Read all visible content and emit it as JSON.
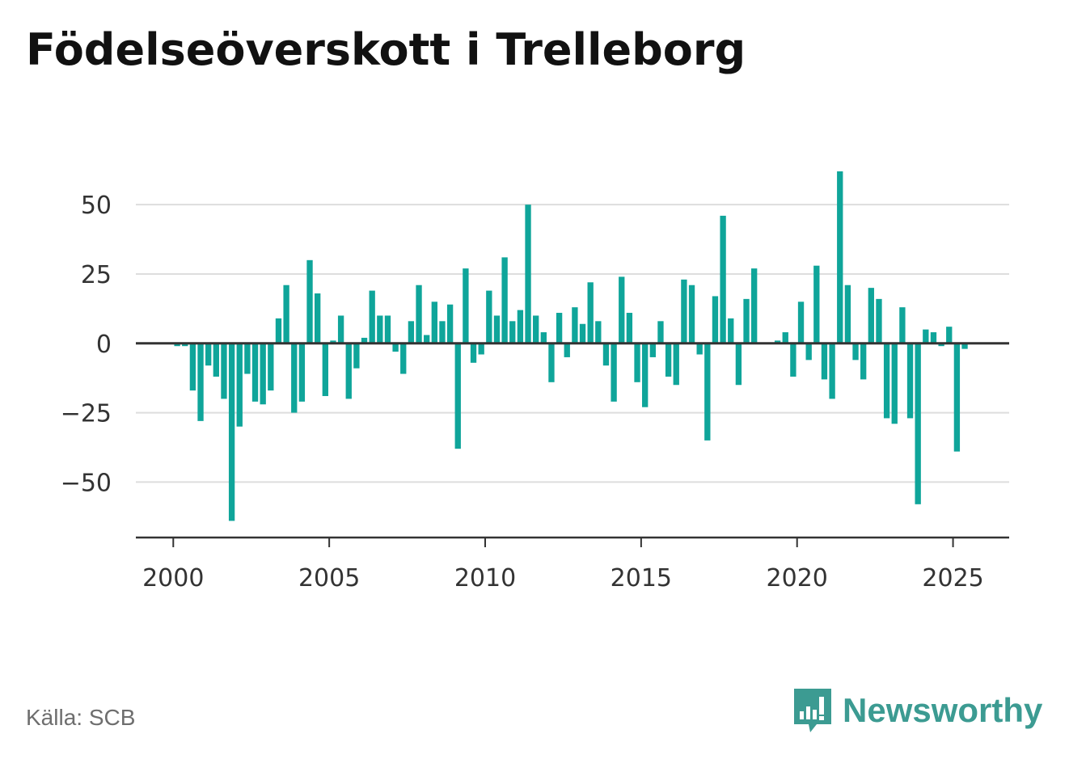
{
  "title": "Födelseöverskott i Trelleborg",
  "source": "Källa: SCB",
  "brand": {
    "name": "Newsworthy",
    "icon": "newsworthy-logo-icon",
    "color": "#3c9b92"
  },
  "colors": {
    "bar": "#0fa59a",
    "grid": "#dddddd",
    "axis": "#333333"
  },
  "chart_data": {
    "type": "bar",
    "title": "Födelseöverskott i Trelleborg",
    "xlabel": "",
    "ylabel": "",
    "ylim": [
      -70,
      62
    ],
    "xlim": [
      1998.8,
      2026.8
    ],
    "y_ticks": [
      50,
      25,
      0,
      -25,
      -50
    ],
    "y_tick_labels": [
      "50",
      "25",
      "0",
      "−25",
      "−50"
    ],
    "x_ticks": [
      2000,
      2005,
      2010,
      2015,
      2020,
      2025
    ],
    "x_tick_labels": [
      "2000",
      "2005",
      "2010",
      "2015",
      "2020",
      "2025"
    ],
    "grid": true,
    "x": [
      2000.125,
      2000.375,
      2000.625,
      2000.875,
      2001.125,
      2001.375,
      2001.625,
      2001.875,
      2002.125,
      2002.375,
      2002.625,
      2002.875,
      2003.125,
      2003.375,
      2003.625,
      2003.875,
      2004.125,
      2004.375,
      2004.625,
      2004.875,
      2005.125,
      2005.375,
      2005.625,
      2005.875,
      2006.125,
      2006.375,
      2006.625,
      2006.875,
      2007.125,
      2007.375,
      2007.625,
      2007.875,
      2008.125,
      2008.375,
      2008.625,
      2008.875,
      2009.125,
      2009.375,
      2009.625,
      2009.875,
      2010.125,
      2010.375,
      2010.625,
      2010.875,
      2011.125,
      2011.375,
      2011.625,
      2011.875,
      2012.125,
      2012.375,
      2012.625,
      2012.875,
      2013.125,
      2013.375,
      2013.625,
      2013.875,
      2014.125,
      2014.375,
      2014.625,
      2014.875,
      2015.125,
      2015.375,
      2015.625,
      2015.875,
      2016.125,
      2016.375,
      2016.625,
      2016.875,
      2017.125,
      2017.375,
      2017.625,
      2017.875,
      2018.125,
      2018.375,
      2018.625,
      2018.875,
      2019.125,
      2019.375,
      2019.625,
      2019.875,
      2020.125,
      2020.375,
      2020.625,
      2020.875,
      2021.125,
      2021.375,
      2021.625,
      2021.875,
      2022.125,
      2022.375,
      2022.625,
      2022.875,
      2023.125,
      2023.375,
      2023.625,
      2023.875,
      2024.125,
      2024.375,
      2024.625,
      2024.875,
      2025.125,
      2025.375
    ],
    "values": [
      -1,
      -1,
      -17,
      -28,
      -8,
      -12,
      -20,
      -64,
      -30,
      -11,
      -21,
      -22,
      -17,
      9,
      21,
      -25,
      -21,
      30,
      18,
      -19,
      1,
      10,
      -20,
      -9,
      2,
      19,
      10,
      10,
      -3,
      -11,
      8,
      21,
      3,
      15,
      8,
      14,
      -38,
      27,
      -7,
      -4,
      19,
      10,
      31,
      8,
      12,
      50,
      10,
      4,
      -14,
      11,
      -5,
      13,
      7,
      22,
      8,
      -8,
      -21,
      24,
      11,
      -14,
      -23,
      -5,
      8,
      -12,
      -15,
      23,
      21,
      -4,
      -35,
      17,
      46,
      9,
      -15,
      16,
      27,
      0,
      0,
      1,
      4,
      -12,
      15,
      -6,
      28,
      -13,
      -20,
      62,
      21,
      -6,
      -13,
      20,
      16,
      -27,
      -29,
      13,
      -27,
      -58,
      5,
      4,
      -1,
      6,
      -39,
      -2
    ]
  }
}
